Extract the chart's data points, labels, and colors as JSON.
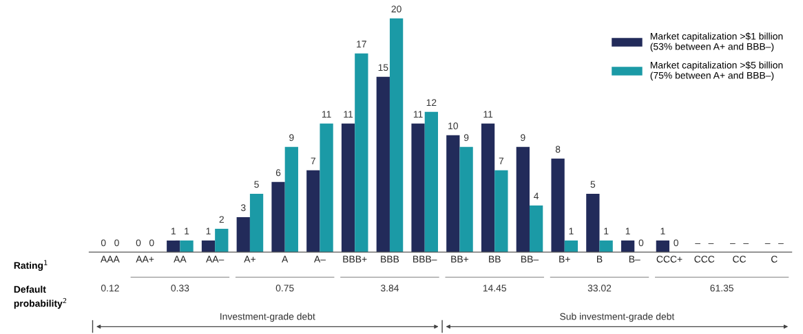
{
  "chart_data": {
    "type": "bar",
    "categories": [
      "AAA",
      "AA+",
      "AA",
      "AA–",
      "A+",
      "A",
      "A–",
      "BBB+",
      "BBB",
      "BBB–",
      "BB+",
      "BB",
      "BB–",
      "B+",
      "B",
      "B–",
      "CCC+",
      "CCC",
      "CC",
      "C"
    ],
    "series": [
      {
        "name": "Market capitalization >$1 billion\n(53% between A+ and BBB–)",
        "color": "#222b5a",
        "values": [
          0,
          0,
          1,
          1,
          3,
          6,
          7,
          11,
          15,
          11,
          10,
          11,
          9,
          8,
          5,
          1,
          1,
          null,
          null,
          null
        ],
        "value_labels": [
          "0",
          "0",
          "1",
          "1",
          "3",
          "6",
          "7",
          "11",
          "15",
          "11",
          "10",
          "11",
          "9",
          "8",
          "5",
          "1",
          "1",
          "–",
          "–",
          "–"
        ]
      },
      {
        "name": "Market capitalization >$5 billion\n(75% between A+ and BBB–)",
        "color": "#1b9aa6",
        "values": [
          0,
          0,
          1,
          2,
          5,
          9,
          11,
          17,
          20,
          12,
          9,
          7,
          4,
          1,
          1,
          0,
          0,
          null,
          null,
          null
        ],
        "value_labels": [
          "0",
          "0",
          "1",
          "2",
          "5",
          "9",
          "11",
          "17",
          "20",
          "12",
          "9",
          "7",
          "4",
          "1",
          "1",
          "0",
          "0",
          "–",
          "–",
          "–"
        ]
      }
    ],
    "tick_labels": "x",
    "legend": "top right",
    "annotations": [
      "Rating$^{1}$",
      "Default\nprobability$^{2}$",
      "0.12",
      "0.33",
      "0.75",
      "3.84",
      "14.45",
      "33.02",
      "61.35",
      "Investment-grade debt",
      "Sub investment-grade debt"
    ]
  }
}
